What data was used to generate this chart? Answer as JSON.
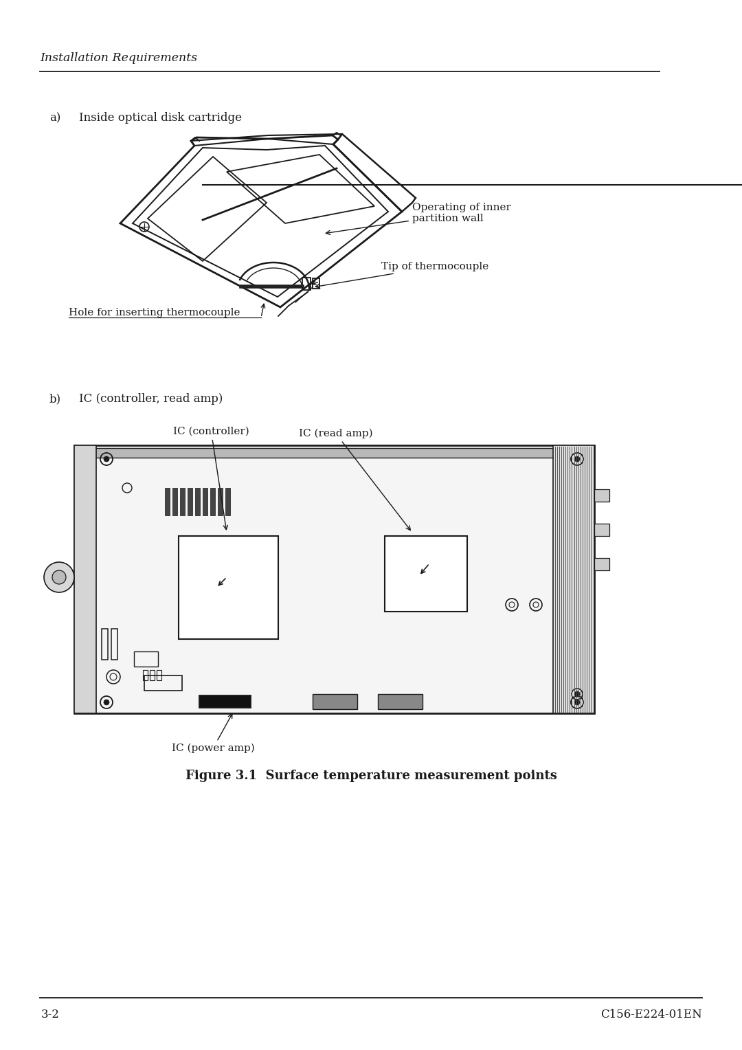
{
  "bg_color": "#ffffff",
  "text_color": "#1a1a1a",
  "header_text": "Installation Requirements",
  "footer_left": "3-2",
  "footer_right": "C156-E224-01EN",
  "section_a_label": "a)",
  "section_a_title": "Inside optical disk cartridge",
  "section_b_label": "b)",
  "section_b_title": "IC (controller, read amp)",
  "figure_caption": "Figure 3.1  Surface temperature measurement points",
  "label_hole": "Hole for inserting thermocouple",
  "label_operating": "Operating of inner\npartition wall",
  "label_tip": "Tip of thermocouple",
  "label_ic_controller": "IC (controller)",
  "label_ic_read_amp": "IC (read amp)",
  "label_ic_power_amp": "IC (power amp)"
}
